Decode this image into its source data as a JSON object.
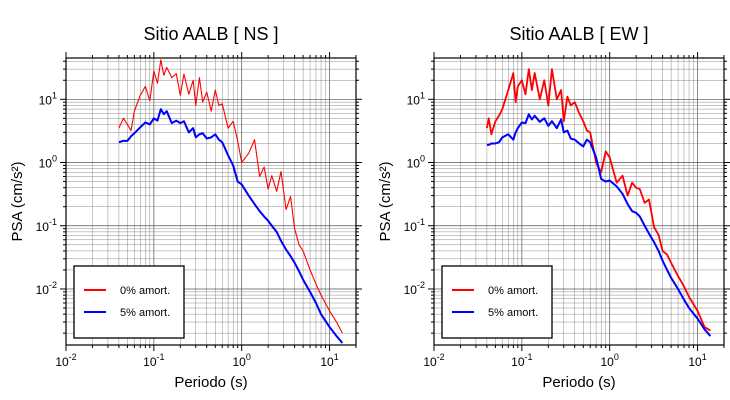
{
  "chart_data": [
    {
      "type": "line",
      "title": "Sitio AALB [ NS ]",
      "xlabel": "Periodo (s)",
      "ylabel": "PSA (cm/s²)",
      "x_scale": "log",
      "y_scale": "log",
      "xlim": [
        0.01,
        20
      ],
      "ylim": [
        0.0013,
        45
      ],
      "x_ticks": [
        {
          "value": 0.01,
          "base": "10",
          "exp": "-2"
        },
        {
          "value": 0.1,
          "base": "10",
          "exp": "-1"
        },
        {
          "value": 1,
          "base": "10",
          "exp": "0"
        },
        {
          "value": 10,
          "base": "10",
          "exp": "1"
        }
      ],
      "y_ticks": [
        {
          "value": 0.01,
          "base": "10",
          "exp": "-2"
        },
        {
          "value": 0.1,
          "base": "10",
          "exp": "-1"
        },
        {
          "value": 1,
          "base": "10",
          "exp": "0"
        },
        {
          "value": 10,
          "base": "10",
          "exp": "1"
        }
      ],
      "grid": true,
      "legend_position": "bottom-left",
      "series": [
        {
          "name": "0% amort.",
          "color": "#ff0000",
          "x": [
            0.04,
            0.045,
            0.05,
            0.055,
            0.06,
            0.07,
            0.08,
            0.09,
            0.1,
            0.11,
            0.12,
            0.13,
            0.14,
            0.16,
            0.18,
            0.2,
            0.22,
            0.25,
            0.28,
            0.3,
            0.33,
            0.36,
            0.4,
            0.45,
            0.5,
            0.55,
            0.6,
            0.7,
            0.8,
            0.9,
            1.0,
            1.2,
            1.4,
            1.6,
            1.8,
            2.0,
            2.2,
            2.5,
            2.8,
            3.2,
            3.6,
            4.0,
            4.5,
            5.0,
            6.0,
            7.0,
            8.0,
            10.0,
            12.0,
            14.0
          ],
          "y": [
            3.5,
            5.0,
            4.0,
            3.2,
            6.5,
            11.5,
            16.0,
            9.5,
            28.0,
            18.0,
            42.0,
            24.0,
            32.0,
            22.0,
            25.5,
            11.5,
            25.0,
            12.0,
            20.0,
            8.0,
            22.0,
            9.0,
            13.0,
            6.5,
            14.0,
            8.0,
            8.5,
            3.5,
            4.5,
            2.2,
            1.0,
            1.4,
            2.3,
            0.6,
            0.85,
            0.38,
            0.62,
            0.35,
            0.72,
            0.18,
            0.29,
            0.09,
            0.05,
            0.04,
            0.02,
            0.012,
            0.008,
            0.0045,
            0.003,
            0.002
          ]
        },
        {
          "name": "5% amort.",
          "color": "#0000ff",
          "x": [
            0.04,
            0.045,
            0.05,
            0.055,
            0.06,
            0.07,
            0.08,
            0.09,
            0.1,
            0.11,
            0.12,
            0.13,
            0.14,
            0.16,
            0.18,
            0.2,
            0.22,
            0.25,
            0.28,
            0.3,
            0.33,
            0.36,
            0.4,
            0.45,
            0.5,
            0.55,
            0.6,
            0.7,
            0.8,
            0.9,
            1.0,
            1.2,
            1.4,
            1.6,
            1.8,
            2.0,
            2.2,
            2.5,
            2.8,
            3.2,
            3.6,
            4.0,
            4.5,
            5.0,
            6.0,
            7.0,
            8.0,
            10.0,
            12.0,
            14.0
          ],
          "y": [
            2.1,
            2.2,
            2.2,
            2.6,
            2.9,
            3.6,
            4.3,
            4.0,
            5.0,
            4.6,
            7.0,
            5.8,
            6.5,
            4.2,
            4.6,
            4.2,
            4.5,
            3.0,
            3.5,
            2.5,
            2.8,
            2.9,
            2.4,
            2.5,
            2.8,
            2.3,
            2.1,
            1.3,
            0.9,
            0.5,
            0.45,
            0.3,
            0.22,
            0.17,
            0.14,
            0.12,
            0.1,
            0.08,
            0.058,
            0.042,
            0.033,
            0.026,
            0.019,
            0.014,
            0.009,
            0.006,
            0.004,
            0.0025,
            0.0018,
            0.0014
          ]
        }
      ],
      "legend": {
        "entries": [
          "0% amort.",
          "5% amort."
        ]
      }
    },
    {
      "type": "line",
      "title": "Sitio AALB [ EW ]",
      "xlabel": "Periodo (s)",
      "ylabel": "PSA (cm/s²)",
      "x_scale": "log",
      "y_scale": "log",
      "xlim": [
        0.01,
        20
      ],
      "ylim": [
        0.0013,
        45
      ],
      "x_ticks": [
        {
          "value": 0.01,
          "base": "10",
          "exp": "-2"
        },
        {
          "value": 0.1,
          "base": "10",
          "exp": "-1"
        },
        {
          "value": 1,
          "base": "10",
          "exp": "0"
        },
        {
          "value": 10,
          "base": "10",
          "exp": "1"
        }
      ],
      "y_ticks": [
        {
          "value": 0.01,
          "base": "10",
          "exp": "-2"
        },
        {
          "value": 0.1,
          "base": "10",
          "exp": "-1"
        },
        {
          "value": 1,
          "base": "10",
          "exp": "0"
        },
        {
          "value": 10,
          "base": "10",
          "exp": "1"
        }
      ],
      "grid": true,
      "legend_position": "bottom-left",
      "series": [
        {
          "name": "0% amort.",
          "color": "#ff0000",
          "x": [
            0.04,
            0.042,
            0.045,
            0.05,
            0.055,
            0.06,
            0.07,
            0.08,
            0.085,
            0.09,
            0.1,
            0.11,
            0.12,
            0.13,
            0.14,
            0.16,
            0.18,
            0.2,
            0.22,
            0.25,
            0.28,
            0.3,
            0.33,
            0.36,
            0.4,
            0.45,
            0.5,
            0.55,
            0.6,
            0.7,
            0.8,
            0.9,
            1.0,
            1.2,
            1.4,
            1.6,
            1.8,
            2.0,
            2.2,
            2.5,
            2.8,
            3.2,
            3.6,
            4.0,
            4.5,
            5.0,
            6.0,
            7.0,
            8.0,
            10.0,
            12.0,
            14.0
          ],
          "y": [
            3.5,
            5.0,
            2.8,
            4.5,
            5.5,
            7.0,
            14.0,
            26.0,
            9.0,
            16.0,
            20.0,
            12.0,
            30.0,
            14.0,
            26.0,
            10.0,
            20.0,
            8.0,
            30.0,
            10.0,
            14.0,
            4.5,
            11.0,
            8.0,
            9.0,
            6.0,
            4.5,
            3.2,
            3.0,
            1.0,
            0.7,
            1.5,
            1.2,
            0.48,
            0.62,
            0.3,
            0.48,
            0.4,
            0.38,
            0.23,
            0.26,
            0.095,
            0.072,
            0.04,
            0.035,
            0.026,
            0.016,
            0.011,
            0.0075,
            0.0045,
            0.0025,
            0.0022
          ]
        },
        {
          "name": "5% amort.",
          "color": "#0000ff",
          "x": [
            0.04,
            0.042,
            0.045,
            0.05,
            0.055,
            0.06,
            0.07,
            0.08,
            0.085,
            0.09,
            0.1,
            0.11,
            0.12,
            0.13,
            0.14,
            0.16,
            0.18,
            0.2,
            0.22,
            0.25,
            0.28,
            0.3,
            0.33,
            0.36,
            0.4,
            0.45,
            0.5,
            0.55,
            0.6,
            0.7,
            0.8,
            0.9,
            1.0,
            1.2,
            1.4,
            1.6,
            1.8,
            2.0,
            2.2,
            2.5,
            2.8,
            3.2,
            3.6,
            4.0,
            4.5,
            5.0,
            6.0,
            7.0,
            8.0,
            10.0,
            12.0,
            14.0
          ],
          "y": [
            1.9,
            1.9,
            2.0,
            2.0,
            2.1,
            2.5,
            2.8,
            2.3,
            3.0,
            3.5,
            4.3,
            4.2,
            5.8,
            4.8,
            5.5,
            4.4,
            5.0,
            3.8,
            4.5,
            3.5,
            4.8,
            3.0,
            3.2,
            2.4,
            2.3,
            2.0,
            1.8,
            2.3,
            2.1,
            1.2,
            0.55,
            0.5,
            0.52,
            0.42,
            0.32,
            0.22,
            0.17,
            0.16,
            0.14,
            0.1,
            0.075,
            0.055,
            0.04,
            0.028,
            0.02,
            0.015,
            0.01,
            0.0068,
            0.005,
            0.0034,
            0.0023,
            0.0018
          ]
        }
      ],
      "legend": {
        "entries": [
          "0% amort.",
          "5% amort."
        ]
      }
    }
  ]
}
